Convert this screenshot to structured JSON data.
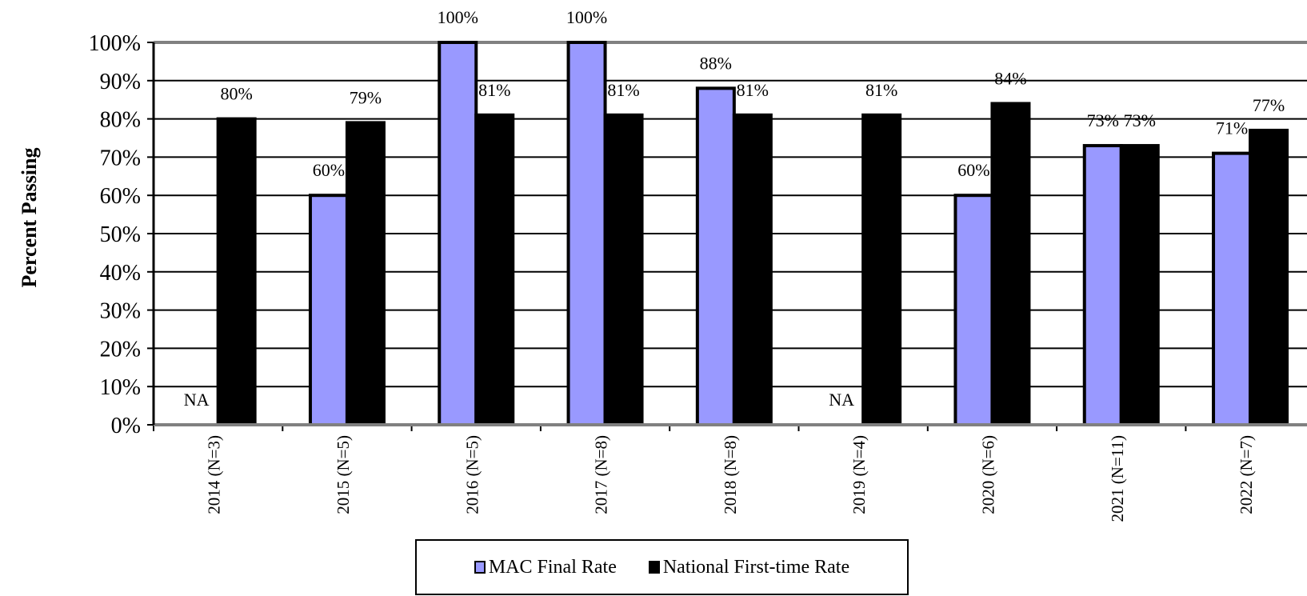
{
  "chart_data": {
    "type": "bar",
    "title": "",
    "xlabel": "",
    "ylabel": "Percent Passing",
    "ylim": [
      0,
      100
    ],
    "yticks": [
      "0%",
      "10%",
      "20%",
      "30%",
      "40%",
      "50%",
      "60%",
      "70%",
      "80%",
      "90%",
      "100%"
    ],
    "categories": [
      "2014 (N=3)",
      "2015 (N=5)",
      "2016 (N=5)",
      "2017 (N=8)",
      "2018 (N=8)",
      "2019 (N=4)",
      "2020 (N=6)",
      "2021 (N=11)",
      "2022 (N=7)"
    ],
    "series": [
      {
        "name": "MAC Final Rate",
        "color": "#9999ff",
        "values": [
          null,
          60,
          100,
          100,
          88,
          null,
          60,
          73,
          71
        ],
        "labels": [
          "NA",
          "60%",
          "100%",
          "100%",
          "88%",
          "NA",
          "60%",
          "73%",
          "71%"
        ]
      },
      {
        "name": "National First-time Rate",
        "color": "#000000",
        "values": [
          80,
          79,
          81,
          81,
          81,
          81,
          84,
          73,
          77
        ],
        "labels": [
          "80%",
          "79%",
          "81%",
          "81%",
          "81%",
          "81%",
          "84%",
          "73%",
          "77%"
        ]
      }
    ],
    "grid": true,
    "legend_position": "bottom"
  }
}
